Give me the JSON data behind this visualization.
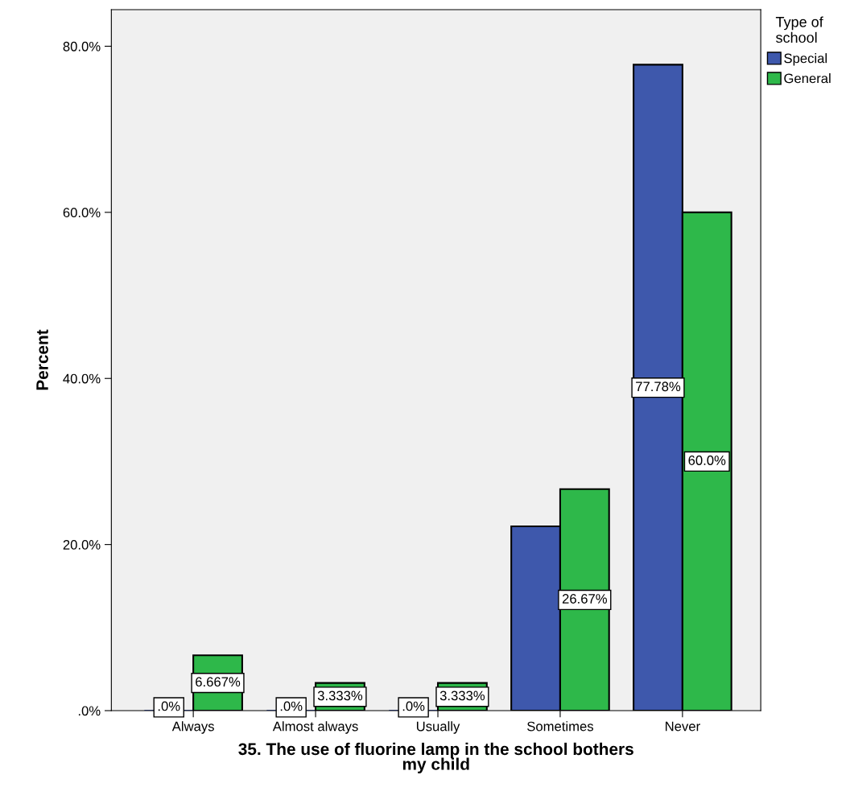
{
  "chart_data": {
    "type": "bar",
    "xlabel": "35. The use of fluorine lamp in the school bothers\nmy child",
    "ylabel": "Percent",
    "legend_title": "Type of\nschool",
    "categories": [
      "Always",
      "Almost always",
      "Usually",
      "Sometimes",
      "Never"
    ],
    "series": [
      {
        "name": "Special",
        "color": "#3e58ac",
        "values": [
          0,
          0,
          0,
          22.2,
          77.78
        ],
        "value_labels": [
          ".0%",
          ".0%",
          ".0%",
          null,
          "77.78%"
        ]
      },
      {
        "name": "General",
        "color": "#2eb84a",
        "values": [
          6.667,
          3.333,
          3.333,
          26.67,
          60.0
        ],
        "value_labels": [
          "6.667%",
          "3.333%",
          "3.333%",
          "26.67%",
          "60.0%"
        ]
      }
    ],
    "ylim": [
      0,
      84.4
    ],
    "yticks": [
      {
        "value": 0,
        "label": ".0%"
      },
      {
        "value": 20,
        "label": "20.0%"
      },
      {
        "value": 40,
        "label": "40.0%"
      },
      {
        "value": 60,
        "label": "60.0%"
      },
      {
        "value": 80,
        "label": "80.0%"
      }
    ],
    "grid": false,
    "legend": "top right"
  }
}
